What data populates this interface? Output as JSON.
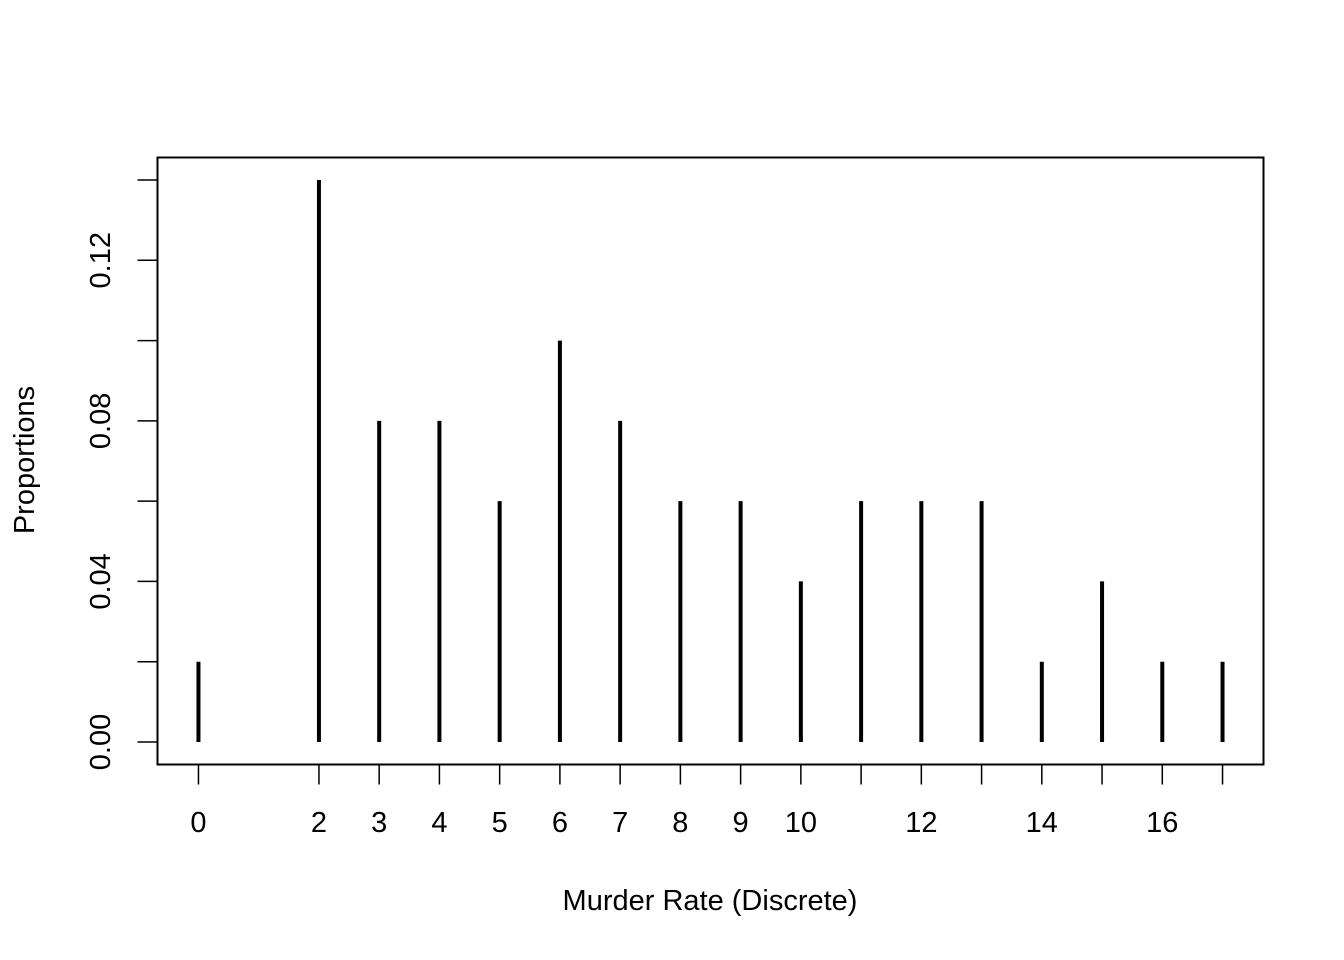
{
  "chart_data": {
    "type": "bar",
    "style": "needle",
    "xlabel": "Murder Rate (Discrete)",
    "ylabel": "Proportions",
    "x": [
      0,
      2,
      3,
      4,
      5,
      6,
      7,
      8,
      9,
      10,
      11,
      12,
      13,
      14,
      15,
      16,
      17
    ],
    "values": [
      0.02,
      0.14,
      0.08,
      0.08,
      0.06,
      0.1,
      0.08,
      0.06,
      0.06,
      0.04,
      0.06,
      0.06,
      0.06,
      0.02,
      0.04,
      0.02,
      0.02
    ],
    "x_tick_marks": [
      0,
      2,
      3,
      4,
      5,
      6,
      7,
      8,
      9,
      10,
      11,
      12,
      13,
      14,
      15,
      16,
      17
    ],
    "x_tick_labels": [
      "0",
      "2",
      "3",
      "4",
      "5",
      "6",
      "7",
      "8",
      "9",
      "10",
      "12",
      "14",
      "16"
    ],
    "y_ticks": [
      0.0,
      0.02,
      0.04,
      0.06,
      0.08,
      0.1,
      0.12,
      0.14
    ],
    "y_tick_labels": [
      "0.00",
      "0.04",
      "0.08",
      "0.12"
    ],
    "xlim": [
      -0.68,
      17.68
    ],
    "ylim": [
      -0.0056,
      0.1456
    ],
    "grid": false,
    "color": "#000000"
  }
}
